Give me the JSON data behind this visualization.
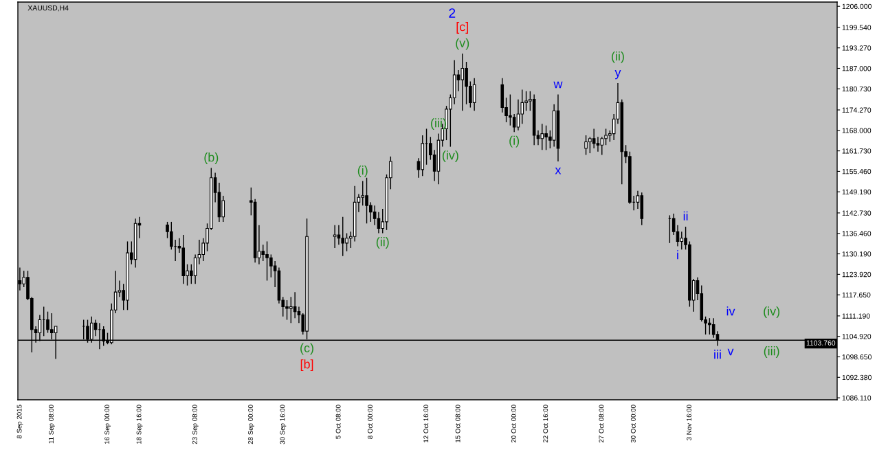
{
  "chart_data": {
    "type": "candlestick",
    "title": "XAUUSD,H4",
    "x": [
      "2015-09-08T16:00",
      "2015-09-09T00:00",
      "2015-09-09T08:00",
      "2015-09-09T16:00",
      "2015-09-10T00:00",
      "2015-09-10T08:00",
      "2015-09-10T16:00",
      "2015-09-11T00:00",
      "2015-09-11T08:00",
      "2015-09-11T16:00",
      "2015-09-14T00:00",
      "2015-09-14T08:00",
      "2015-09-14T16:00",
      "2015-09-15T00:00",
      "2015-09-15T08:00",
      "2015-09-15T16:00",
      "2015-09-16T00:00",
      "2015-09-16T08:00",
      "2015-09-16T16:00",
      "2015-09-17T00:00",
      "2015-09-17T08:00",
      "2015-09-17T16:00",
      "2015-09-18T00:00",
      "2015-09-18T08:00",
      "2015-09-18T16:00",
      "2015-09-21T00:00",
      "2015-09-21T08:00",
      "2015-09-21T16:00",
      "2015-09-22T00:00",
      "2015-09-22T08:00",
      "2015-09-22T16:00",
      "2015-09-23T00:00",
      "2015-09-23T08:00",
      "2015-09-23T16:00",
      "2015-09-24T00:00",
      "2015-09-24T08:00",
      "2015-09-24T16:00",
      "2015-09-25T00:00",
      "2015-09-25T08:00",
      "2015-09-25T16:00",
      "2015-09-28T00:00",
      "2015-09-28T08:00",
      "2015-09-28T16:00",
      "2015-09-29T00:00",
      "2015-09-29T08:00",
      "2015-09-29T16:00",
      "2015-09-30T00:00",
      "2015-09-30T08:00",
      "2015-09-30T16:00",
      "2015-10-01T00:00",
      "2015-10-01T08:00",
      "2015-10-01T16:00",
      "2015-10-02T00:00",
      "2015-10-02T08:00",
      "2015-10-02T16:00",
      "2015-10-05T00:00",
      "2015-10-05T08:00",
      "2015-10-05T16:00",
      "2015-10-06T00:00",
      "2015-10-06T08:00",
      "2015-10-06T16:00",
      "2015-10-07T00:00",
      "2015-10-07T08:00",
      "2015-10-07T16:00",
      "2015-10-08T00:00",
      "2015-10-08T08:00",
      "2015-10-08T16:00",
      "2015-10-09T00:00",
      "2015-10-09T08:00",
      "2015-10-09T16:00",
      "2015-10-12T00:00",
      "2015-10-12T08:00",
      "2015-10-12T16:00",
      "2015-10-13T00:00",
      "2015-10-13T08:00",
      "2015-10-13T16:00",
      "2015-10-14T00:00",
      "2015-10-14T08:00",
      "2015-10-14T16:00",
      "2015-10-15T00:00",
      "2015-10-15T08:00",
      "2015-10-15T16:00",
      "2015-10-16T00:00",
      "2015-10-16T08:00",
      "2015-10-16T16:00",
      "2015-10-19T00:00",
      "2015-10-19T08:00",
      "2015-10-19T16:00",
      "2015-10-20T00:00",
      "2015-10-20T08:00",
      "2015-10-20T16:00",
      "2015-10-21T00:00",
      "2015-10-21T08:00",
      "2015-10-21T16:00",
      "2015-10-22T00:00",
      "2015-10-22T08:00",
      "2015-10-22T16:00",
      "2015-10-23T00:00",
      "2015-10-23T08:00",
      "2015-10-23T16:00",
      "2015-10-26T00:00",
      "2015-10-26T08:00",
      "2015-10-26T16:00",
      "2015-10-27T00:00",
      "2015-10-27T08:00",
      "2015-10-27T16:00",
      "2015-10-28T00:00",
      "2015-10-28T08:00",
      "2015-10-28T16:00",
      "2015-10-29T00:00",
      "2015-10-29T08:00",
      "2015-10-29T16:00",
      "2015-10-30T00:00",
      "2015-10-30T08:00",
      "2015-10-30T16:00",
      "2015-11-02T00:00",
      "2015-11-02T08:00",
      "2015-11-02T16:00",
      "2015-11-03T00:00",
      "2015-11-03T08:00",
      "2015-11-03T16:00",
      "2015-11-04T00:00",
      "2015-11-04T08:00",
      "2015-11-04T16:00",
      "2015-11-05T00:00",
      "2015-11-05T08:00",
      "2015-11-05T16:00",
      "2015-11-06T00:00"
    ],
    "ohlc": [
      [
        1122,
        1126,
        1119,
        1121
      ],
      [
        1121,
        1125,
        1120,
        1123
      ],
      [
        1123,
        1125,
        1116,
        1116.5
      ],
      [
        1116.5,
        1117,
        1100,
        1107
      ],
      [
        1107,
        1108,
        1103,
        1106
      ],
      [
        1106,
        1111.5,
        1103.5,
        1110
      ],
      [
        1110,
        1114,
        1105,
        1110
      ],
      [
        1110,
        1112.5,
        1106,
        1107
      ],
      [
        1107,
        1112,
        1104,
        1106
      ],
      [
        1106,
        1108,
        1098,
        1108
      ],
      [
        1108,
        1110,
        1104,
        1108
      ],
      [
        1108,
        1110,
        1103,
        1104
      ],
      [
        1104,
        1111,
        1103,
        1109
      ],
      [
        1109,
        1110,
        1105,
        1107
      ],
      [
        1107,
        1109,
        1101,
        1107
      ],
      [
        1107,
        1108,
        1102,
        1103.5
      ],
      [
        1103.5,
        1106,
        1102.5,
        1103
      ],
      [
        1103,
        1115,
        1102.5,
        1113
      ],
      [
        1113,
        1125,
        1112,
        1118.5
      ],
      [
        1118.5,
        1122,
        1117,
        1119
      ],
      [
        1119,
        1121,
        1113,
        1116
      ],
      [
        1116,
        1134,
        1113,
        1130.5
      ],
      [
        1130.5,
        1134,
        1127,
        1128.5
      ],
      [
        1128.5,
        1141,
        1126,
        1139.5
      ],
      [
        1139.5,
        1141.5,
        1135,
        1139
      ],
      [
        1139,
        1140,
        1135,
        1137
      ],
      [
        1137,
        1140,
        1131.5,
        1132.5
      ],
      [
        1132.5,
        1134.5,
        1128,
        1132.5
      ],
      [
        1132.5,
        1135,
        1130.5,
        1132
      ],
      [
        1132,
        1136,
        1121,
        1123.5
      ],
      [
        1123.5,
        1127,
        1120.5,
        1125
      ],
      [
        1125,
        1127,
        1121,
        1123.5
      ],
      [
        1123.5,
        1130,
        1121,
        1129
      ],
      [
        1129,
        1134.5,
        1127,
        1130
      ],
      [
        1130,
        1135,
        1128,
        1133.5
      ],
      [
        1133.5,
        1139.5,
        1131,
        1138
      ],
      [
        1138,
        1156.5,
        1137.5,
        1153.5
      ],
      [
        1153.5,
        1155,
        1146,
        1149
      ],
      [
        1149,
        1152,
        1140,
        1141.5
      ],
      [
        1141.5,
        1148,
        1140,
        1146.5
      ],
      [
        1146.5,
        1150.5,
        1142,
        1146
      ],
      [
        1146,
        1147,
        1127.5,
        1129
      ],
      [
        1129,
        1139,
        1127,
        1131
      ],
      [
        1131,
        1133,
        1128,
        1130
      ],
      [
        1130,
        1134,
        1122,
        1129
      ],
      [
        1129,
        1130,
        1123,
        1126.5
      ],
      [
        1126.5,
        1128,
        1120,
        1125
      ],
      [
        1125,
        1126,
        1115,
        1116
      ],
      [
        1116,
        1117,
        1111,
        1114
      ],
      [
        1114,
        1116,
        1110,
        1113.5
      ],
      [
        1113.5,
        1117,
        1109,
        1114
      ],
      [
        1114,
        1118.5,
        1110.5,
        1112.5
      ],
      [
        1112.5,
        1114,
        1109,
        1111.5
      ],
      [
        1111.5,
        1112,
        1105.5,
        1106.5
      ],
      [
        1106.5,
        1141,
        1104,
        1135.5
      ],
      [
        1135.5,
        1139,
        1132,
        1136
      ],
      [
        1136,
        1139,
        1133,
        1135
      ],
      [
        1135,
        1141.5,
        1129.5,
        1133.5
      ],
      [
        1133.5,
        1136.5,
        1131,
        1135
      ],
      [
        1135,
        1137,
        1132,
        1135.5
      ],
      [
        1135.5,
        1151,
        1134,
        1146
      ],
      [
        1146,
        1148.5,
        1143,
        1147.5
      ],
      [
        1147.5,
        1152.5,
        1145,
        1148
      ],
      [
        1148,
        1153.5,
        1139.5,
        1145
      ],
      [
        1145,
        1146,
        1140,
        1143
      ],
      [
        1143,
        1145,
        1139,
        1141
      ],
      [
        1141,
        1143,
        1136.5,
        1138
      ],
      [
        1138,
        1144,
        1136.5,
        1140
      ],
      [
        1140,
        1154.5,
        1137.5,
        1153.5
      ],
      [
        1153.5,
        1160,
        1150,
        1158.5
      ],
      [
        1158.5,
        1159.5,
        1153.5,
        1156
      ],
      [
        1156,
        1166.5,
        1154,
        1164
      ],
      [
        1164,
        1168.5,
        1157.5,
        1164
      ],
      [
        1164,
        1166,
        1159,
        1160.5
      ],
      [
        1160.5,
        1162,
        1152.5,
        1155.5
      ],
      [
        1155.5,
        1167,
        1151.5,
        1165
      ],
      [
        1165,
        1170,
        1163,
        1168.5
      ],
      [
        1168.5,
        1175.5,
        1165,
        1174.5
      ],
      [
        1174.5,
        1179,
        1163,
        1178
      ],
      [
        1178,
        1189.5,
        1176,
        1185
      ],
      [
        1185,
        1186.5,
        1180,
        1183.5
      ],
      [
        1183.5,
        1191.5,
        1174,
        1187
      ],
      [
        1187,
        1189,
        1176,
        1181.5
      ],
      [
        1181.5,
        1183,
        1175,
        1176.5
      ],
      [
        1176.5,
        1184,
        1174,
        1182
      ],
      [
        1182,
        1184,
        1173.5,
        1175
      ],
      [
        1175,
        1178,
        1170.5,
        1172.5
      ],
      [
        1172.5,
        1179,
        1169.5,
        1172
      ],
      [
        1172,
        1173,
        1167.5,
        1169
      ],
      [
        1169,
        1177.5,
        1168,
        1173
      ],
      [
        1173,
        1180.5,
        1170,
        1176.5
      ],
      [
        1176.5,
        1180,
        1174,
        1177
      ],
      [
        1177,
        1180,
        1174,
        1177.5
      ],
      [
        1177.5,
        1179,
        1163.5,
        1166.5
      ],
      [
        1166.5,
        1168,
        1163.5,
        1165.5
      ],
      [
        1165.5,
        1170,
        1162,
        1167
      ],
      [
        1167,
        1169.5,
        1162,
        1166
      ],
      [
        1166,
        1168,
        1162.5,
        1165
      ],
      [
        1165,
        1176,
        1163,
        1174
      ],
      [
        1174,
        1179,
        1158.5,
        1162.5
      ],
      [
        1162.5,
        1166.5,
        1160.5,
        1164.5
      ],
      [
        1164.5,
        1166,
        1161,
        1165.5
      ],
      [
        1165.5,
        1168.5,
        1162.5,
        1164
      ],
      [
        1164,
        1166,
        1161.5,
        1163.5
      ],
      [
        1163.5,
        1166,
        1160.5,
        1165.5
      ],
      [
        1165.5,
        1168.5,
        1163.5,
        1166.5
      ],
      [
        1166.5,
        1168,
        1164.5,
        1167
      ],
      [
        1167,
        1173,
        1165,
        1171.5
      ],
      [
        1171.5,
        1182.5,
        1170,
        1176.5
      ],
      [
        1176.5,
        1177.5,
        1151.5,
        1161.5
      ],
      [
        1161.5,
        1163.5,
        1158,
        1160
      ],
      [
        1160,
        1161.5,
        1145.5,
        1146
      ],
      [
        1146,
        1148,
        1143.5,
        1146
      ],
      [
        1146,
        1149.5,
        1144,
        1148
      ],
      [
        1148,
        1149,
        1139,
        1141
      ],
      [
        1141,
        1142,
        1133.5,
        1141
      ],
      [
        1141,
        1142.5,
        1136,
        1137
      ],
      [
        1137,
        1139,
        1132.5,
        1134
      ],
      [
        1134,
        1137,
        1131.5,
        1135
      ],
      [
        1135,
        1138.5,
        1131.5,
        1133
      ],
      [
        1133,
        1134,
        1114,
        1116
      ],
      [
        1116,
        1122.5,
        1112.5,
        1122
      ],
      [
        1122,
        1123,
        1116,
        1118
      ],
      [
        1118,
        1120.5,
        1109.5,
        1110
      ],
      [
        1110,
        1111,
        1105.5,
        1109
      ],
      [
        1109,
        1110.5,
        1105.5,
        1108.5
      ],
      [
        1108.5,
        1110.5,
        1104.5,
        1105.5
      ],
      [
        1105.5,
        1106.5,
        1102,
        1103.76
      ]
    ],
    "xlim": [
      "2015-09-08T12:00",
      "2015-11-16T00:00"
    ],
    "xticks": [
      {
        "value": "2015-09-08T16:00",
        "label": "8 Sep 2015"
      },
      {
        "value": "2015-09-11T08:00",
        "label": "11 Sep 08:00"
      },
      {
        "value": "2015-09-16T00:00",
        "label": "16 Sep 00:00"
      },
      {
        "value": "2015-09-18T16:00",
        "label": "18 Sep 16:00"
      },
      {
        "value": "2015-09-23T08:00",
        "label": "23 Sep 08:00"
      },
      {
        "value": "2015-09-28T00:00",
        "label": "28 Sep 00:00"
      },
      {
        "value": "2015-09-30T16:00",
        "label": "30 Sep 16:00"
      },
      {
        "value": "2015-10-05T08:00",
        "label": "5 Oct 08:00"
      },
      {
        "value": "2015-10-08T00:00",
        "label": "8 Oct 00:00"
      },
      {
        "value": "2015-10-12T16:00",
        "label": "12 Oct 16:00"
      },
      {
        "value": "2015-10-15T08:00",
        "label": "15 Oct 08:00"
      },
      {
        "value": "2015-10-20T00:00",
        "label": "20 Oct 00:00"
      },
      {
        "value": "2015-10-22T16:00",
        "label": "22 Oct 16:00"
      },
      {
        "value": "2015-10-27T08:00",
        "label": "27 Oct 08:00"
      },
      {
        "value": "2015-10-30T00:00",
        "label": "30 Oct 00:00"
      },
      {
        "value": "2015-11-03T16:00",
        "label": "3 Nov 16:00"
      }
    ],
    "ylim": [
      1085.5,
      1207.3
    ],
    "yticks": [
      {
        "value": 1206,
        "label": "1206.000"
      },
      {
        "value": 1199.54,
        "label": "1199.540"
      },
      {
        "value": 1193.27,
        "label": "1193.270"
      },
      {
        "value": 1187,
        "label": "1187.000"
      },
      {
        "value": 1180.73,
        "label": "1180.730"
      },
      {
        "value": 1174.27,
        "label": "1174.270"
      },
      {
        "value": 1168,
        "label": "1168.000"
      },
      {
        "value": 1161.73,
        "label": "1161.730"
      },
      {
        "value": 1155.46,
        "label": "1155.460"
      },
      {
        "value": 1149.19,
        "label": "1149.190"
      },
      {
        "value": 1142.73,
        "label": "1142.730"
      },
      {
        "value": 1136.46,
        "label": "1136.460"
      },
      {
        "value": 1130.19,
        "label": "1130.190"
      },
      {
        "value": 1123.92,
        "label": "1123.920"
      },
      {
        "value": 1117.65,
        "label": "1117.650"
      },
      {
        "value": 1111.19,
        "label": "1111.190"
      },
      {
        "value": 1104.92,
        "label": "1104.920"
      },
      {
        "value": 1098.65,
        "label": "1098.650"
      },
      {
        "value": 1092.38,
        "label": "1092.380"
      },
      {
        "value": 1086.11,
        "label": "1086.110"
      }
    ],
    "ref_lines": [
      {
        "axis": "y",
        "value": 1103.76,
        "label": "1103.760",
        "color": "#000000"
      }
    ],
    "annotations": [
      {
        "text": "(v)",
        "x": "2015-10-15T16:00",
        "y": 1191.5
      },
      {
        "text": "[c]",
        "x": "2015-10-15T16:00",
        "y": 1191.5
      },
      "2",
      {
        "text": "(iii)",
        "x": "2015-10-13T16:00",
        "y": 1167
      },
      {
        "text": "(iv)",
        "x": "2015-10-14T16:00",
        "y": 1163
      },
      {
        "text": "(i)",
        "x": "2015-10-20T00:00",
        "y": 1167.5
      },
      {
        "text": "w",
        "x": "2015-10-23T16:00",
        "y": 1179
      },
      {
        "text": "x",
        "x": "2015-10-23T16:00",
        "y": 1158.5
      },
      {
        "text": "y",
        "x": "2015-10-28T16:00",
        "y": 1182.5
      },
      {
        "text": "(ii)",
        "x": "2015-10-28T16:00",
        "y": 1182.5
      },
      {
        "text": "ii",
        "x": "2015-11-03T08:00",
        "y": 1138.5
      },
      {
        "text": "i",
        "x": "2015-11-02T16:00",
        "y": 1132.5
      },
      {
        "text": "iii",
        "x": "2015-11-06T00:00",
        "y": 1102
      },
      {
        "text": "(b)",
        "x": "2015-09-24T16:00",
        "y": 1156.5
      },
      {
        "text": "(c)",
        "x": "2015-10-02T16:00",
        "y": 1104
      },
      {
        "text": "[b]",
        "x": "2015-10-02T16:00",
        "y": 1104
      },
      {
        "text": "(i)",
        "x": "2015-10-07T08:00",
        "y": 1152.5
      },
      {
        "text": "(ii)",
        "x": "2015-10-09T00:00",
        "y": 1136.5
      },
      "iv",
      "(iv)",
      "v",
      "(iii)"
    ]
  }
}
